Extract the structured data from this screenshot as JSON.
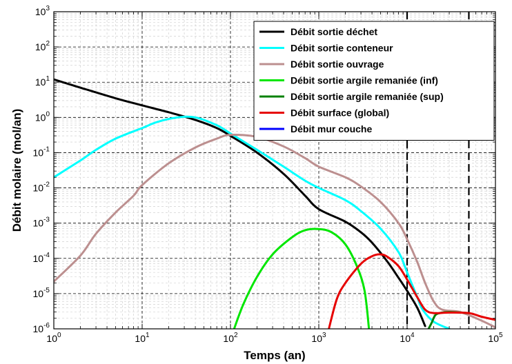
{
  "chart_data": {
    "type": "line",
    "xlabel": "Temps (an)",
    "ylabel": "Débit molaire (mol/an)",
    "xscale": "log",
    "yscale": "log",
    "xlim": [
      1,
      100000
    ],
    "ylim": [
      1e-06,
      1000
    ],
    "grid": true,
    "legend_position": "top-right",
    "x_tick_labels": [
      {
        "base": "10",
        "exp": "0"
      },
      {
        "base": "10",
        "exp": "1"
      },
      {
        "base": "10",
        "exp": "2"
      },
      {
        "base": "10",
        "exp": "3"
      },
      {
        "base": "10",
        "exp": "4"
      },
      {
        "base": "10",
        "exp": "5"
      }
    ],
    "y_tick_labels": [
      {
        "base": "10",
        "exp": "-6"
      },
      {
        "base": "10",
        "exp": "-5"
      },
      {
        "base": "10",
        "exp": "-4"
      },
      {
        "base": "10",
        "exp": "-3"
      },
      {
        "base": "10",
        "exp": "-2"
      },
      {
        "base": "10",
        "exp": "-1"
      },
      {
        "base": "10",
        "exp": "0"
      },
      {
        "base": "10",
        "exp": "1"
      },
      {
        "base": "10",
        "exp": "2"
      },
      {
        "base": "10",
        "exp": "3"
      }
    ],
    "vertical_markers": [
      {
        "x": 10000,
        "style": "dashed",
        "color": "#000000"
      },
      {
        "x": 50000,
        "style": "dashed",
        "color": "#000000"
      }
    ],
    "series": [
      {
        "name": "Débit sortie déchet",
        "color": "#000000",
        "points": [
          [
            1,
            12
          ],
          [
            2,
            7
          ],
          [
            5,
            3.5
          ],
          [
            10,
            2.2
          ],
          [
            20,
            1.4
          ],
          [
            40,
            0.85
          ],
          [
            70,
            0.5
          ],
          [
            100,
            0.3
          ],
          [
            200,
            0.1
          ],
          [
            400,
            0.025
          ],
          [
            700,
            0.006
          ],
          [
            1000,
            0.0025
          ],
          [
            2000,
            0.0011
          ],
          [
            3000,
            0.00055
          ],
          [
            4000,
            0.00028
          ],
          [
            6000,
            8e-05
          ],
          [
            8000,
            2.8e-05
          ],
          [
            10000,
            1.2e-05
          ],
          [
            13000,
            4e-06
          ],
          [
            16000,
            1.2e-06
          ]
        ]
      },
      {
        "name": "Débit sortie conteneur",
        "color": "#00ffff",
        "points": [
          [
            1,
            0.02
          ],
          [
            2,
            0.06
          ],
          [
            3,
            0.12
          ],
          [
            5,
            0.25
          ],
          [
            10,
            0.5
          ],
          [
            15,
            0.75
          ],
          [
            25,
            1.0
          ],
          [
            40,
            1.0
          ],
          [
            70,
            0.6
          ],
          [
            100,
            0.35
          ],
          [
            200,
            0.12
          ],
          [
            400,
            0.04
          ],
          [
            700,
            0.016
          ],
          [
            1000,
            0.01
          ],
          [
            2000,
            0.0045
          ],
          [
            3000,
            0.0022
          ],
          [
            5000,
            0.0007
          ],
          [
            8000,
            0.00015
          ],
          [
            10000,
            4e-05
          ],
          [
            13000,
            8e-06
          ],
          [
            15000,
            3.5e-06
          ],
          [
            20000,
            1.6e-06
          ],
          [
            30000,
            1e-06
          ]
        ]
      },
      {
        "name": "Débit sortie ouvrage",
        "color": "#bc8f8f",
        "points": [
          [
            1,
            2.2e-05
          ],
          [
            2,
            0.00012
          ],
          [
            3,
            0.0005
          ],
          [
            5,
            0.002
          ],
          [
            8,
            0.006
          ],
          [
            10,
            0.012
          ],
          [
            20,
            0.05
          ],
          [
            40,
            0.14
          ],
          [
            70,
            0.25
          ],
          [
            100,
            0.32
          ],
          [
            200,
            0.28
          ],
          [
            400,
            0.15
          ],
          [
            700,
            0.07
          ],
          [
            1000,
            0.04
          ],
          [
            2000,
            0.02
          ],
          [
            3000,
            0.011
          ],
          [
            5000,
            0.004
          ],
          [
            8000,
            0.001
          ],
          [
            10000,
            0.00035
          ],
          [
            13000,
            8e-05
          ],
          [
            16000,
            2e-05
          ],
          [
            20000,
            6e-06
          ],
          [
            25000,
            3.5e-06
          ],
          [
            40000,
            3e-06
          ],
          [
            70000,
            1.7e-06
          ],
          [
            100000,
            1.1e-06
          ]
        ]
      },
      {
        "name": "Débit sortie argile remaniée (inf)",
        "color": "#00e600",
        "points": [
          [
            110,
            1e-06
          ],
          [
            140,
            5e-06
          ],
          [
            200,
            3e-05
          ],
          [
            300,
            0.00013
          ],
          [
            500,
            0.0004
          ],
          [
            700,
            0.00063
          ],
          [
            1000,
            0.00068
          ],
          [
            1400,
            0.00055
          ],
          [
            2000,
            0.00025
          ],
          [
            2700,
            6e-05
          ],
          [
            3300,
            1.2e-05
          ],
          [
            3700,
            1e-06
          ]
        ]
      },
      {
        "name": "Débit sortie argile remaniée (sup)",
        "color": "#008000",
        "points": [
          [
            17500,
            1e-06
          ],
          [
            19000,
            1.5e-06
          ],
          [
            21000,
            2.5e-06
          ],
          [
            25000,
            2.9e-06
          ],
          [
            30000,
            3e-06
          ],
          [
            40000,
            2.9e-06
          ],
          [
            50000,
            2.8e-06
          ]
        ]
      },
      {
        "name": "Débit surface (global)",
        "color": "#e60000",
        "points": [
          [
            1300,
            1e-06
          ],
          [
            1600,
            7e-06
          ],
          [
            2000,
            2e-05
          ],
          [
            3000,
            7e-05
          ],
          [
            4000,
            0.000115
          ],
          [
            5000,
            0.00013
          ],
          [
            6000,
            0.00011
          ],
          [
            8000,
            6e-05
          ],
          [
            10000,
            2.5e-05
          ],
          [
            13000,
            8e-06
          ],
          [
            16000,
            3.5e-06
          ],
          [
            20000,
            2.8e-06
          ],
          [
            30000,
            2.9e-06
          ],
          [
            50000,
            2.8e-06
          ],
          [
            70000,
            2.2e-06
          ],
          [
            100000,
            1.8e-06
          ]
        ]
      },
      {
        "name": "Débit mur couche",
        "color": "#0000ff",
        "points": []
      }
    ]
  }
}
